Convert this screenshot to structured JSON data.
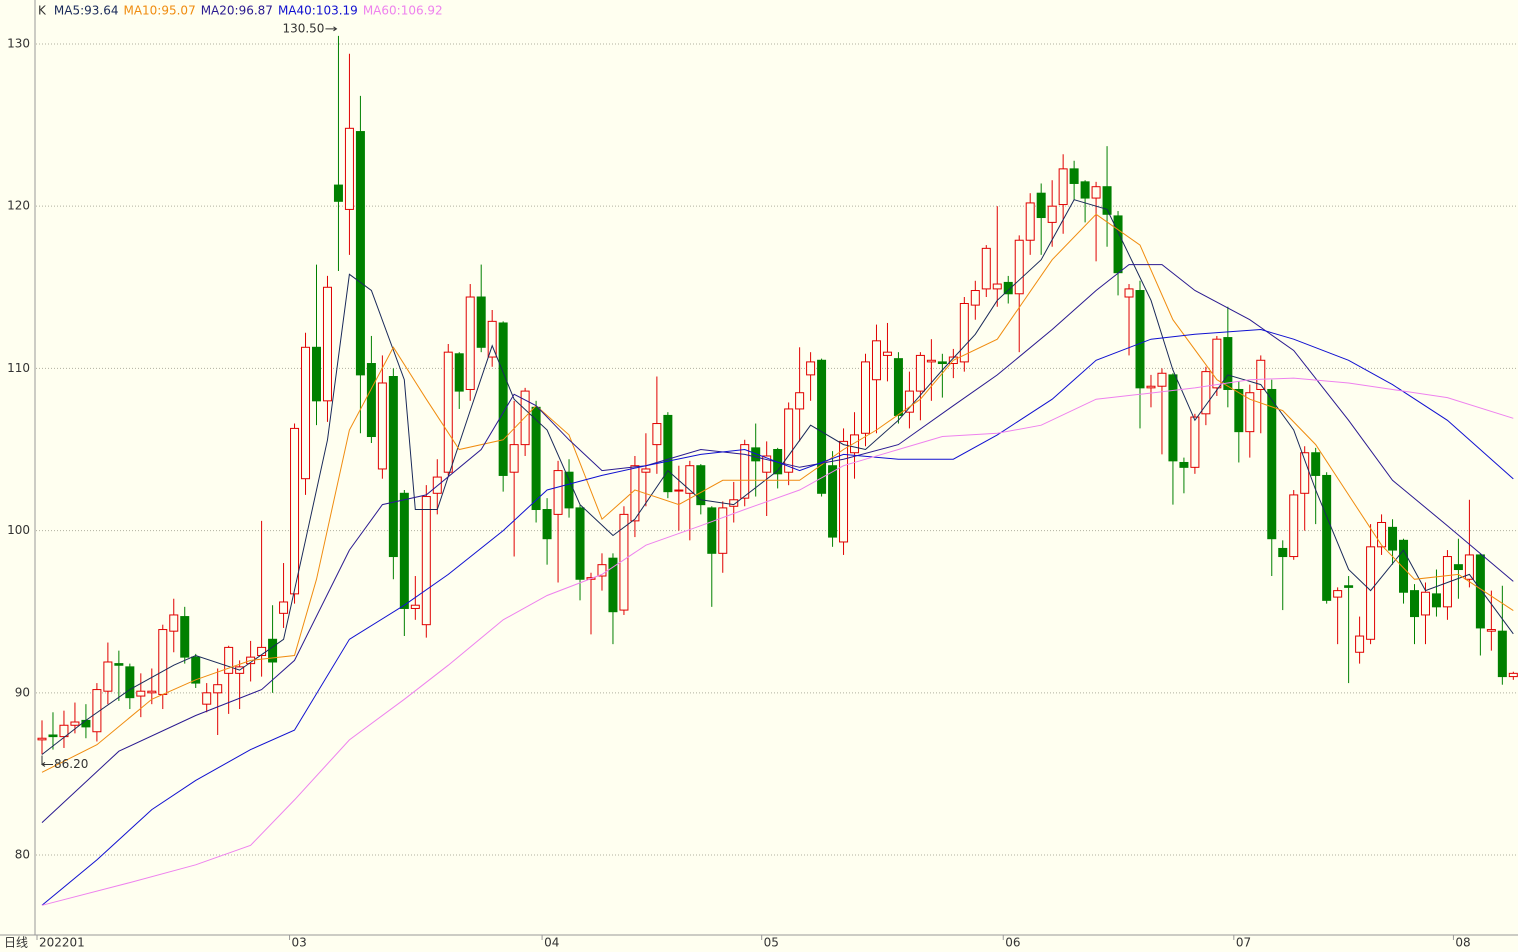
{
  "chart_data": {
    "type": "candlestick",
    "legend_title": "K",
    "period_label": "日线",
    "categories": [
      "202201",
      null,
      null,
      null,
      null,
      null,
      null,
      null,
      null,
      null,
      null,
      null,
      null,
      null,
      null,
      null,
      null,
      null,
      null,
      null,
      null,
      null,
      null,
      "03",
      null,
      null,
      null,
      null,
      null,
      null,
      null,
      null,
      null,
      null,
      null,
      null,
      null,
      null,
      null,
      null,
      null,
      null,
      null,
      null,
      null,
      null,
      "04",
      null,
      null,
      null,
      null,
      null,
      null,
      null,
      null,
      null,
      null,
      null,
      null,
      null,
      null,
      null,
      null,
      null,
      null,
      null,
      "05",
      null,
      null,
      null,
      null,
      null,
      null,
      null,
      null,
      null,
      null,
      null,
      null,
      null,
      null,
      null,
      null,
      null,
      null,
      null,
      null,
      null,
      "06",
      null,
      null,
      null,
      null,
      null,
      null,
      null,
      null,
      null,
      null,
      null,
      null,
      null,
      null,
      null,
      null,
      null,
      null,
      null,
      null,
      "07",
      null,
      null,
      null,
      null,
      null,
      null,
      null,
      null,
      null,
      null,
      null,
      null,
      null,
      null,
      null,
      null,
      null,
      null,
      null,
      "08",
      null,
      null
    ],
    "ohlc": [
      [
        87.1,
        88.3,
        86.2,
        87.2
      ],
      [
        87.4,
        88.8,
        86.5,
        87.3
      ],
      [
        87.3,
        88.9,
        86.6,
        88.0
      ],
      [
        88.0,
        89.4,
        87.5,
        88.2
      ],
      [
        88.3,
        89.3,
        87.2,
        87.9
      ],
      [
        87.6,
        90.6,
        87.0,
        90.2
      ],
      [
        90.1,
        93.1,
        89.3,
        91.9
      ],
      [
        91.8,
        92.6,
        89.5,
        91.7
      ],
      [
        91.6,
        91.8,
        89.0,
        89.7
      ],
      [
        89.8,
        91.2,
        88.5,
        90.1
      ],
      [
        90.0,
        91.5,
        89.3,
        90.1
      ],
      [
        89.9,
        94.2,
        89.0,
        93.9
      ],
      [
        93.8,
        95.8,
        92.5,
        94.8
      ],
      [
        94.7,
        95.3,
        91.8,
        92.2
      ],
      [
        92.2,
        92.4,
        90.3,
        90.6
      ],
      [
        89.3,
        90.6,
        88.8,
        90.0
      ],
      [
        90.0,
        91.5,
        87.4,
        90.5
      ],
      [
        91.2,
        92.9,
        88.7,
        92.8
      ],
      [
        91.2,
        92.0,
        89.0,
        91.6
      ],
      [
        91.8,
        93.2,
        90.7,
        92.2
      ],
      [
        92.3,
        100.6,
        91.0,
        92.8
      ],
      [
        93.3,
        95.4,
        90.0,
        91.9
      ],
      [
        94.9,
        98.0,
        94.0,
        95.6
      ],
      [
        96.1,
        106.6,
        95.5,
        106.3
      ],
      [
        103.2,
        112.2,
        102.2,
        111.3
      ],
      [
        111.3,
        116.4,
        106.5,
        108.0
      ],
      [
        108.0,
        115.7,
        106.7,
        115.0
      ],
      [
        121.3,
        130.5,
        116.0,
        120.3
      ],
      [
        119.8,
        129.4,
        117.0,
        124.8
      ],
      [
        124.6,
        126.8,
        106.0,
        109.6
      ],
      [
        110.3,
        112.0,
        105.4,
        105.8
      ],
      [
        103.8,
        110.8,
        103.2,
        109.1
      ],
      [
        109.5,
        110.0,
        97.0,
        98.4
      ],
      [
        102.3,
        102.5,
        93.5,
        95.2
      ],
      [
        95.2,
        97.2,
        94.5,
        95.4
      ],
      [
        94.2,
        102.8,
        93.4,
        102.1
      ],
      [
        102.3,
        104.4,
        101.0,
        103.3
      ],
      [
        103.6,
        111.5,
        103.4,
        111.0
      ],
      [
        110.9,
        111.0,
        107.5,
        108.6
      ],
      [
        108.7,
        115.2,
        108.0,
        114.4
      ],
      [
        114.4,
        116.4,
        111.0,
        111.3
      ],
      [
        110.7,
        113.6,
        110.1,
        112.9
      ],
      [
        112.8,
        112.9,
        102.4,
        103.4
      ],
      [
        103.6,
        108.0,
        98.4,
        105.3
      ],
      [
        105.3,
        108.8,
        104.6,
        108.6
      ],
      [
        107.6,
        108.0,
        100.5,
        101.3
      ],
      [
        101.3,
        102.0,
        97.9,
        99.5
      ],
      [
        101.0,
        104.3,
        96.8,
        103.7
      ],
      [
        103.6,
        104.4,
        100.8,
        101.4
      ],
      [
        101.4,
        101.6,
        95.7,
        97.0
      ],
      [
        97.0,
        97.4,
        93.6,
        97.1
      ],
      [
        97.2,
        98.6,
        96.3,
        97.9
      ],
      [
        98.3,
        98.6,
        93.0,
        95.0
      ],
      [
        95.1,
        101.5,
        94.8,
        101.0
      ],
      [
        100.6,
        104.6,
        99.6,
        104.0
      ],
      [
        103.6,
        106.0,
        101.5,
        103.8
      ],
      [
        105.3,
        109.5,
        103.5,
        106.6
      ],
      [
        107.1,
        107.3,
        102.0,
        102.4
      ],
      [
        102.5,
        104.0,
        100.0,
        102.5
      ],
      [
        102.3,
        104.3,
        99.4,
        104.0
      ],
      [
        104.0,
        104.1,
        101.0,
        101.6
      ],
      [
        101.4,
        101.5,
        95.3,
        98.6
      ],
      [
        98.6,
        101.8,
        97.4,
        101.4
      ],
      [
        101.5,
        103.0,
        100.5,
        101.9
      ],
      [
        102.0,
        105.6,
        101.5,
        105.3
      ],
      [
        105.1,
        106.6,
        102.1,
        104.3
      ],
      [
        103.6,
        105.5,
        100.9,
        104.6
      ],
      [
        105.0,
        105.1,
        102.6,
        103.5
      ],
      [
        103.6,
        107.9,
        102.8,
        107.5
      ],
      [
        107.5,
        111.3,
        105.5,
        108.5
      ],
      [
        109.6,
        111.0,
        108.0,
        110.4
      ],
      [
        110.5,
        110.6,
        102.1,
        102.3
      ],
      [
        104.0,
        104.9,
        99.0,
        99.6
      ],
      [
        99.3,
        106.3,
        98.5,
        105.5
      ],
      [
        104.8,
        107.3,
        103.2,
        105.9
      ],
      [
        106.0,
        110.9,
        105.2,
        110.4
      ],
      [
        109.3,
        112.7,
        106.0,
        111.7
      ],
      [
        110.8,
        112.8,
        109.2,
        111.0
      ],
      [
        110.6,
        111.0,
        106.6,
        107.1
      ],
      [
        107.3,
        109.8,
        106.3,
        108.6
      ],
      [
        108.6,
        111.0,
        106.8,
        110.8
      ],
      [
        110.4,
        111.8,
        108.0,
        110.5
      ],
      [
        110.4,
        110.9,
        108.2,
        110.3
      ],
      [
        110.3,
        111.2,
        109.4,
        110.7
      ],
      [
        110.4,
        114.4,
        109.8,
        114.0
      ],
      [
        113.9,
        115.4,
        113.0,
        114.8
      ],
      [
        114.9,
        117.6,
        114.4,
        117.4
      ],
      [
        114.9,
        120.0,
        113.8,
        115.2
      ],
      [
        115.3,
        115.7,
        114.0,
        114.6
      ],
      [
        114.6,
        118.2,
        111.0,
        117.9
      ],
      [
        117.9,
        120.8,
        117.0,
        120.2
      ],
      [
        120.8,
        121.4,
        117.0,
        119.3
      ],
      [
        119.0,
        121.6,
        117.5,
        120.0
      ],
      [
        120.1,
        123.2,
        118.3,
        122.3
      ],
      [
        122.3,
        122.8,
        120.4,
        121.4
      ],
      [
        121.5,
        121.6,
        119.0,
        120.5
      ],
      [
        120.5,
        121.5,
        116.6,
        121.2
      ],
      [
        121.2,
        123.7,
        117.5,
        119.5
      ],
      [
        119.4,
        119.7,
        114.5,
        115.9
      ],
      [
        114.4,
        115.2,
        110.8,
        114.9
      ],
      [
        114.8,
        115.4,
        106.3,
        108.8
      ],
      [
        108.8,
        109.6,
        107.6,
        108.9
      ],
      [
        108.9,
        110.0,
        104.7,
        109.7
      ],
      [
        109.6,
        109.7,
        101.6,
        104.3
      ],
      [
        104.2,
        104.5,
        102.3,
        103.9
      ],
      [
        103.9,
        107.2,
        103.5,
        107.0
      ],
      [
        107.2,
        110.1,
        106.5,
        109.8
      ],
      [
        108.8,
        112.0,
        108.3,
        111.8
      ],
      [
        111.9,
        113.8,
        107.6,
        108.7
      ],
      [
        108.7,
        109.2,
        104.2,
        106.1
      ],
      [
        106.1,
        109.0,
        104.5,
        108.5
      ],
      [
        108.7,
        110.8,
        106.0,
        110.5
      ],
      [
        108.7,
        109.3,
        97.2,
        99.5
      ],
      [
        98.9,
        99.4,
        95.1,
        98.4
      ],
      [
        98.4,
        102.5,
        98.2,
        102.2
      ],
      [
        102.3,
        105.2,
        100.0,
        104.8
      ],
      [
        104.8,
        105.1,
        100.4,
        103.4
      ],
      [
        103.4,
        103.6,
        95.5,
        95.7
      ],
      [
        95.9,
        96.5,
        93.0,
        96.3
      ],
      [
        96.6,
        97.2,
        90.6,
        96.5
      ],
      [
        92.5,
        94.7,
        91.8,
        93.5
      ],
      [
        93.3,
        100.4,
        93.0,
        99.0
      ],
      [
        99.0,
        101.0,
        98.5,
        100.5
      ],
      [
        100.2,
        100.7,
        97.9,
        98.8
      ],
      [
        99.4,
        99.5,
        95.5,
        96.2
      ],
      [
        96.3,
        96.7,
        93.0,
        94.7
      ],
      [
        94.8,
        96.8,
        93.0,
        96.2
      ],
      [
        96.1,
        97.6,
        94.7,
        95.3
      ],
      [
        95.3,
        98.8,
        94.5,
        98.4
      ],
      [
        97.9,
        99.5,
        95.8,
        97.6
      ],
      [
        97.0,
        101.9,
        96.5,
        98.5
      ],
      [
        98.5,
        98.6,
        92.3,
        94.0
      ],
      [
        93.8,
        96.3,
        92.6,
        93.9
      ],
      [
        93.8,
        96.6,
        90.5,
        91.0
      ],
      [
        91.0,
        91.3,
        90.8,
        91.2
      ]
    ],
    "up_color": "#e00000",
    "down_color": "#008000",
    "series": [
      {
        "name": "MA5:93.64",
        "color": "#1a2a5a",
        "x": [
          0,
          4,
          8,
          12,
          14,
          18,
          22,
          24,
          26,
          28,
          30,
          33,
          34,
          36,
          39,
          41,
          43,
          46,
          49,
          52,
          54,
          57,
          60,
          63,
          67,
          70,
          73,
          75,
          78,
          82,
          85,
          87,
          91,
          94,
          97,
          101,
          103,
          105,
          108,
          111,
          114,
          116,
          119,
          121,
          124,
          126,
          130,
          134
        ],
        "values": [
          86.2,
          88.3,
          90.2,
          91.7,
          92.3,
          91.4,
          93.3,
          99.4,
          105.6,
          115.8,
          114.8,
          109.3,
          101.3,
          101.3,
          107.4,
          111.4,
          108.1,
          106.2,
          101.6,
          99.7,
          100.7,
          103.7,
          101.9,
          101.6,
          103.7,
          106.5,
          105.3,
          105.0,
          106.8,
          109.9,
          112.1,
          114.2,
          116.7,
          120.4,
          119.8,
          114.2,
          109.9,
          106.8,
          109.6,
          109.0,
          106.2,
          102.5,
          97.6,
          96.3,
          98.8,
          96.3,
          97.3,
          93.64
        ]
      },
      {
        "name": "MA10:95.07",
        "color": "#f08c10",
        "x": [
          0,
          5,
          10,
          14,
          19,
          23,
          25,
          28,
          32,
          35,
          38,
          42,
          45,
          48,
          51,
          54,
          58,
          62,
          65,
          69,
          73,
          76,
          80,
          83,
          87,
          92,
          96,
          100,
          103,
          107,
          110,
          113,
          116,
          119,
          122,
          125,
          129,
          134
        ],
        "values": [
          85.1,
          86.8,
          89.6,
          90.8,
          92.0,
          92.3,
          97.0,
          106.2,
          111.3,
          108.1,
          105.0,
          105.6,
          107.7,
          105.9,
          100.7,
          102.5,
          101.6,
          103.1,
          103.1,
          103.1,
          105.0,
          106.2,
          108.1,
          110.5,
          111.8,
          116.7,
          119.5,
          117.6,
          113.0,
          109.3,
          108.1,
          107.4,
          105.3,
          102.2,
          99.1,
          97.0,
          97.3,
          95.07
        ]
      },
      {
        "name": "MA20:96.87",
        "color": "#2a1a90",
        "x": [
          0,
          7,
          14,
          20,
          23,
          28,
          31,
          35,
          40,
          43,
          45,
          48,
          51,
          55,
          60,
          64,
          69,
          73,
          78,
          83,
          87,
          92,
          96,
          99,
          102,
          105,
          110,
          114,
          119,
          123,
          128,
          134
        ],
        "values": [
          82.0,
          86.4,
          88.6,
          90.2,
          92.0,
          98.8,
          101.6,
          102.2,
          105.0,
          108.4,
          107.7,
          105.6,
          103.7,
          104.0,
          105.0,
          104.7,
          103.9,
          104.4,
          105.3,
          107.7,
          109.6,
          112.4,
          114.8,
          116.4,
          116.4,
          114.8,
          113.0,
          111.1,
          106.8,
          103.1,
          100.3,
          96.87
        ]
      },
      {
        "name": "MA40:103.19",
        "color": "#1010d0",
        "x": [
          0,
          5,
          10,
          14,
          19,
          23,
          28,
          33,
          37,
          42,
          46,
          51,
          55,
          60,
          64,
          69,
          73,
          78,
          83,
          87,
          92,
          96,
          101,
          105,
          111,
          114,
          119,
          123,
          128,
          134
        ],
        "values": [
          76.9,
          79.7,
          82.8,
          84.6,
          86.5,
          87.7,
          93.3,
          95.4,
          97.3,
          100.0,
          102.5,
          103.4,
          104.0,
          104.7,
          105.0,
          103.7,
          104.7,
          104.4,
          104.4,
          105.9,
          108.1,
          110.5,
          111.8,
          112.1,
          112.4,
          111.8,
          110.5,
          109.0,
          106.8,
          103.19
        ]
      },
      {
        "name": "MA60:106.92",
        "color": "#ee82ee",
        "x": [
          0,
          8,
          14,
          19,
          23,
          28,
          33,
          37,
          42,
          46,
          51,
          55,
          60,
          64,
          69,
          73,
          78,
          82,
          87,
          91,
          96,
          100,
          105,
          110,
          114,
          119,
          123,
          128,
          134
        ],
        "values": [
          76.9,
          78.3,
          79.4,
          80.6,
          83.4,
          87.1,
          89.6,
          91.7,
          94.5,
          96.0,
          97.3,
          99.1,
          100.3,
          101.3,
          102.5,
          104.0,
          105.0,
          105.8,
          106.0,
          106.5,
          108.1,
          108.4,
          108.8,
          109.3,
          109.4,
          109.1,
          108.7,
          108.2,
          106.92
        ]
      }
    ],
    "ylim": [
      75.07,
      132.71
    ],
    "yticks": [
      80,
      90,
      100,
      110,
      120,
      130
    ],
    "grid": true,
    "max_label": {
      "value": 130.5,
      "label": "130.50"
    },
    "min_label": {
      "value": 86.2,
      "label": "86.20"
    }
  }
}
